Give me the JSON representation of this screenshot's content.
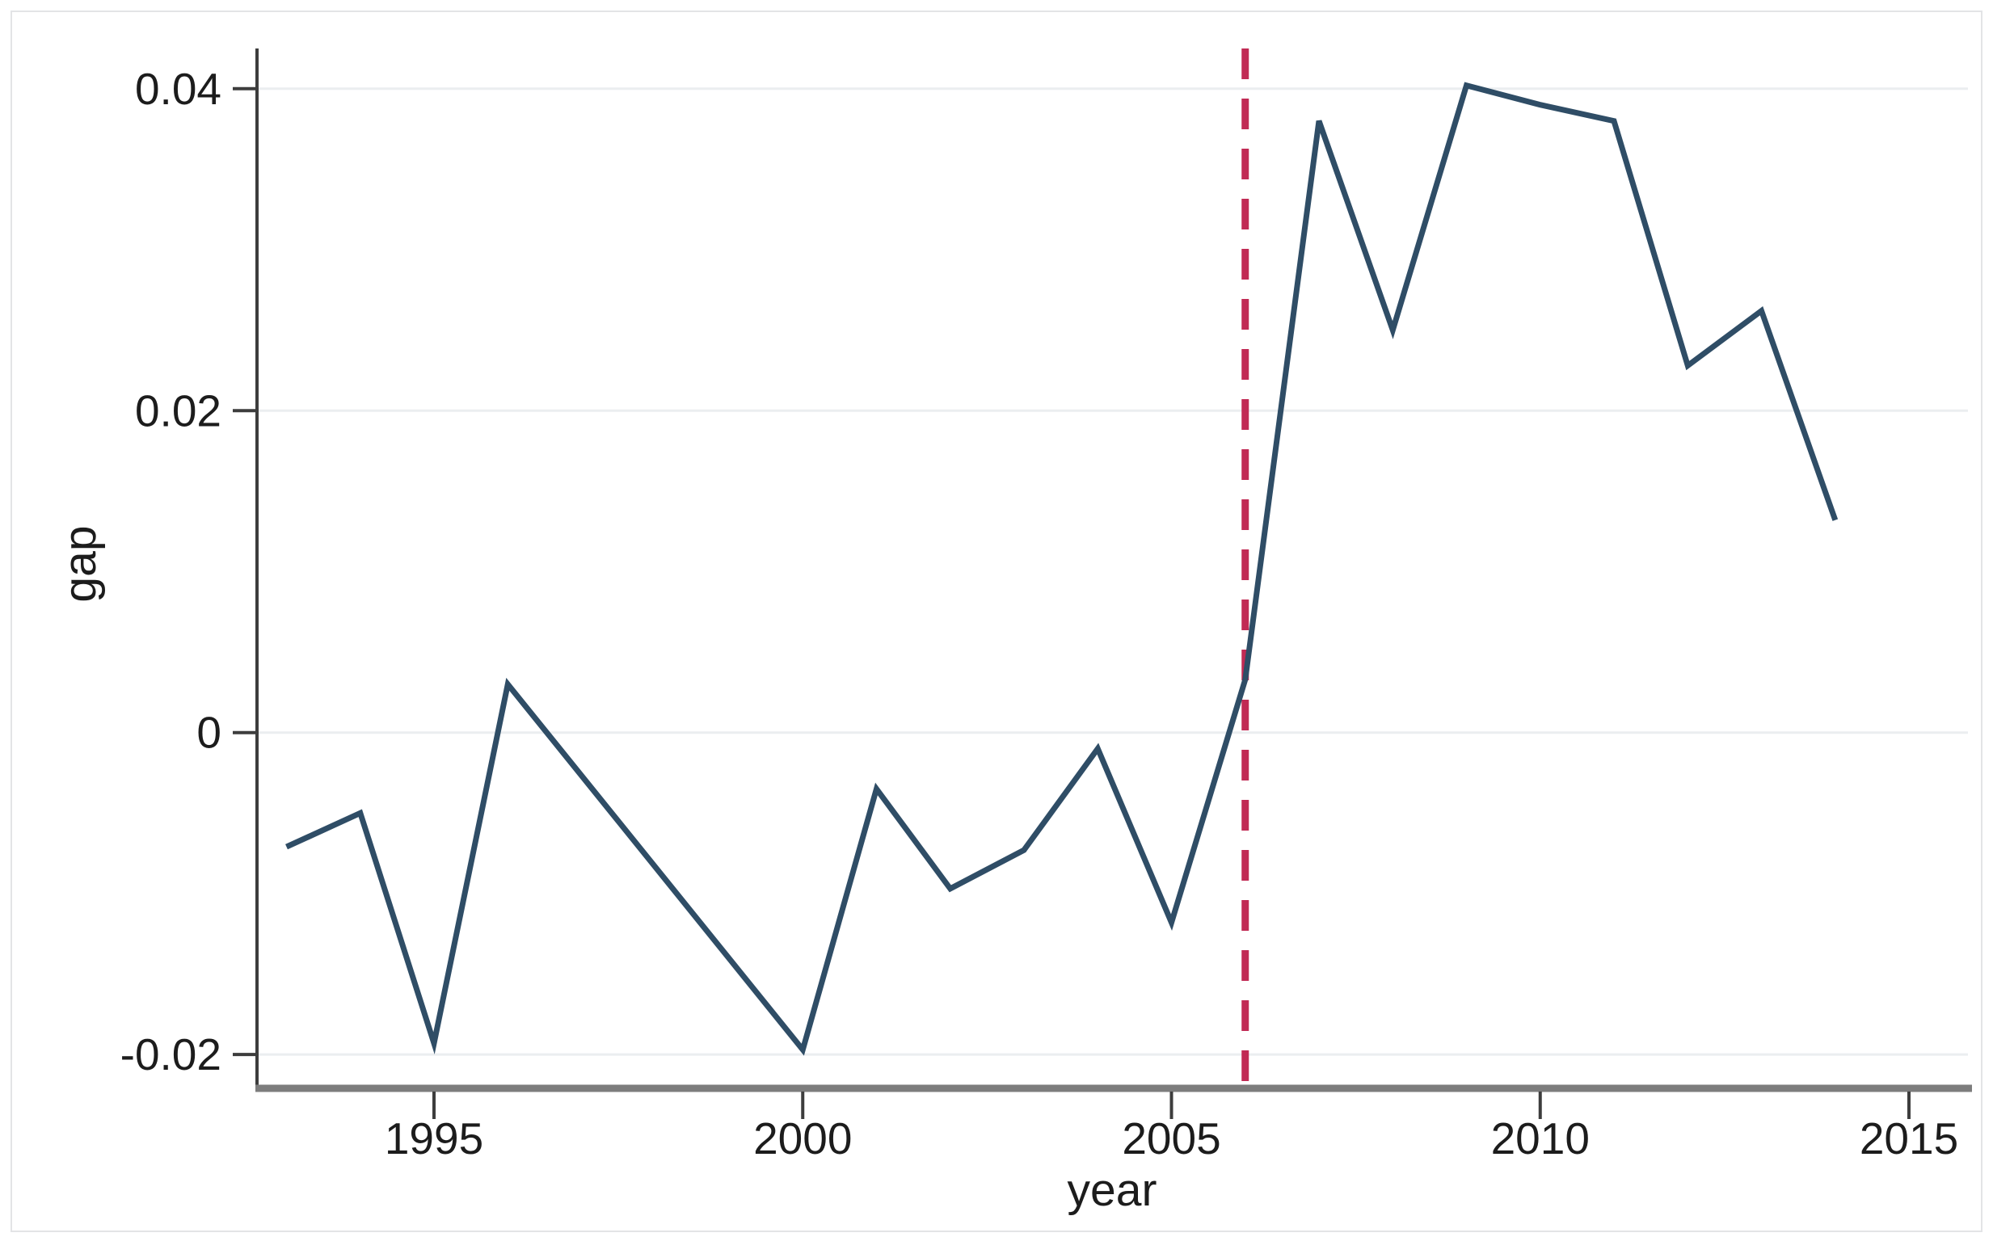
{
  "figure": {
    "background_color": "#ffffff",
    "frame_color": "#e3e4e6"
  },
  "chart_data": {
    "type": "line",
    "title": "",
    "xlabel": "year",
    "ylabel": "gap",
    "legend": "none",
    "grid": "horizontal-only",
    "grid_color": "#ebeef0",
    "axis_line_color": "#3d3d3d",
    "x_axis_line_color": "#7d7d7d",
    "tick_color": "#3d3d3d",
    "text_color": "#1c1c1c",
    "xlim": [
      1992.6,
      2015.8
    ],
    "ylim": [
      -0.0219,
      0.0425
    ],
    "x_ticks": [
      1995,
      2000,
      2005,
      2010,
      2015
    ],
    "x_tick_labels": [
      "1995",
      "2000",
      "2005",
      "2010",
      "2015"
    ],
    "y_ticks": [
      0.04,
      0.02,
      0,
      -0.02
    ],
    "y_tick_labels": [
      "0.04",
      "0.02",
      "0",
      "-0.02"
    ],
    "series": [
      {
        "name": "gap",
        "color": "#2f4d66",
        "line_width": 7,
        "style": "solid",
        "points": [
          {
            "year": 1993,
            "value": -0.0071
          },
          {
            "year": 1994,
            "value": -0.005
          },
          {
            "year": 1995,
            "value": -0.0193
          },
          {
            "year": 1996,
            "value": 0.003
          },
          {
            "year": 2000,
            "value": -0.0197
          },
          {
            "year": 2001,
            "value": -0.0035
          },
          {
            "year": 2002,
            "value": -0.0097
          },
          {
            "year": 2003,
            "value": -0.0073
          },
          {
            "year": 2004,
            "value": -0.001
          },
          {
            "year": 2005,
            "value": -0.0118
          },
          {
            "year": 2006,
            "value": 0.0033
          },
          {
            "year": 2007,
            "value": 0.038
          },
          {
            "year": 2008,
            "value": 0.025
          },
          {
            "year": 2009,
            "value": 0.0402
          },
          {
            "year": 2010,
            "value": 0.039
          },
          {
            "year": 2011,
            "value": 0.038
          },
          {
            "year": 2012,
            "value": 0.0228
          },
          {
            "year": 2013,
            "value": 0.0262
          },
          {
            "year": 2014,
            "value": 0.0132
          }
        ]
      }
    ],
    "reference_lines": [
      {
        "axis": "x",
        "value": 2006,
        "color": "#c12a54",
        "style": "dashed",
        "line_width": 9,
        "dash": "38 24"
      }
    ]
  }
}
